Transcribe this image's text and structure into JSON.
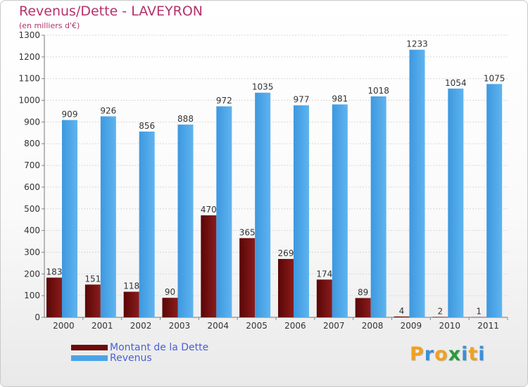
{
  "header": {
    "title": "Revenus/Dette - LAVEYRON",
    "subtitle": "(en milliers d'€)"
  },
  "chart_data": {
    "type": "bar",
    "categories": [
      "2000",
      "2001",
      "2002",
      "2003",
      "2004",
      "2005",
      "2006",
      "2007",
      "2008",
      "2009",
      "2010",
      "2011"
    ],
    "series": [
      {
        "name": "Montant de la Dette",
        "color": "#6b0a0a",
        "values": [
          183,
          151,
          118,
          90,
          470,
          365,
          269,
          174,
          89,
          4,
          2,
          1
        ]
      },
      {
        "name": "Revenus",
        "color": "#4aa3e6",
        "values": [
          909,
          926,
          856,
          888,
          972,
          1035,
          977,
          981,
          1018,
          1233,
          1054,
          1075
        ]
      }
    ],
    "yticks": [
      0,
      100,
      200,
      300,
      400,
      500,
      600,
      700,
      800,
      900,
      1000,
      1100,
      1200,
      1300
    ],
    "ylim": [
      0,
      1300
    ],
    "grid": true,
    "legend_position": "bottom-left"
  },
  "legend": {
    "items": [
      {
        "label": "Montant de la Dette",
        "color": "#6b0a0a"
      },
      {
        "label": "Revenus",
        "color": "#4aa3e6"
      }
    ]
  },
  "logo": {
    "letters": [
      "P",
      "r",
      "o",
      "x",
      "i",
      "t",
      "i"
    ],
    "colors": [
      "#f0a020",
      "#3a8fd8",
      "#f0a020",
      "#2a9a3a",
      "#3a8fd8",
      "#f0a020",
      "#3a8fd8"
    ]
  }
}
